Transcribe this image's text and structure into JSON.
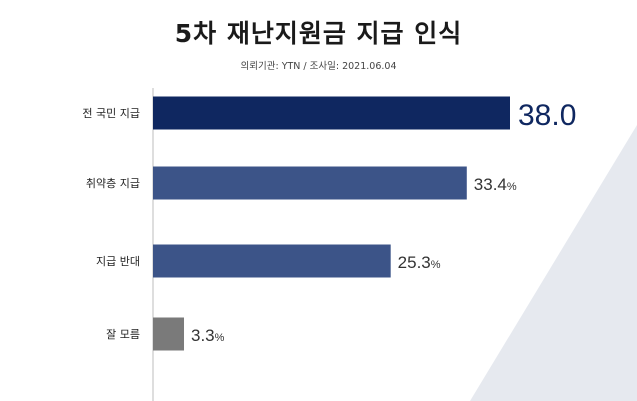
{
  "title": "5차 재난지원금 지급 인식",
  "subtitle": "의뢰기관: YTN  /  조사일: 2021.06.04",
  "colors": {
    "highlight": "#0f2760",
    "mid": "#3c5488",
    "gray": "#7a7a7a",
    "axis": "#bdbdbd",
    "bg_shape": "#e6e9ef"
  },
  "chart_data": {
    "type": "bar",
    "orientation": "horizontal",
    "categories": [
      "전 국민 지급",
      "취약층 지급",
      "지급 반대",
      "잘 모름"
    ],
    "values": [
      38.0,
      33.4,
      25.3,
      3.3
    ],
    "value_labels": [
      "38.0",
      "33.4",
      "25.3",
      "3.3"
    ],
    "unit_labels": [
      "",
      "%",
      "%",
      "%"
    ],
    "xlim": [
      0,
      40
    ],
    "grid": false
  }
}
